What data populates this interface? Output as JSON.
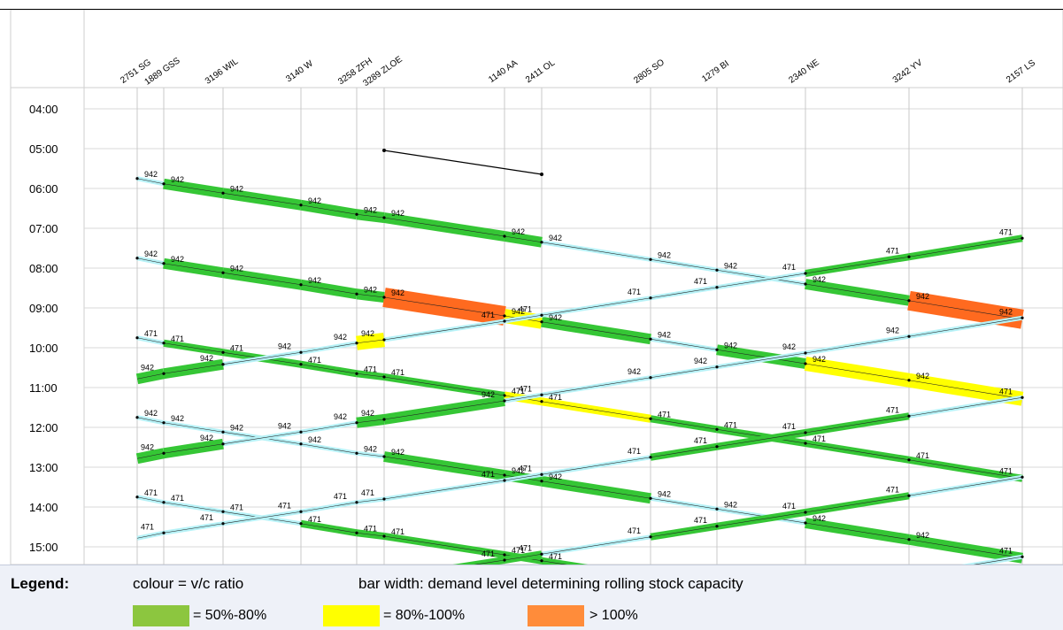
{
  "stations": [
    {
      "label": "2751 SG"
    },
    {
      "label": "1889 GSS"
    },
    {
      "label": "3196 WIL"
    },
    {
      "label": "3140 W"
    },
    {
      "label": "3258 ZFH"
    },
    {
      "label": "3289 ZLOE"
    },
    {
      "label": "1140 AA"
    },
    {
      "label": "2411 OL"
    },
    {
      "label": "2805 SO"
    },
    {
      "label": "1279 BI"
    },
    {
      "label": "2340 NE"
    },
    {
      "label": "3242 YV"
    },
    {
      "label": "2157 LS"
    }
  ],
  "time_labels": [
    "04:00",
    "05:00",
    "06:00",
    "07:00",
    "08:00",
    "09:00",
    "10:00",
    "11:00",
    "12:00",
    "13:00",
    "14:00",
    "15:00"
  ],
  "colors": {
    "below_50": "#b7f2f7",
    "50_80": "#35c635",
    "80_100": "#ffff00",
    "over_100": "#ff6a1f",
    "thin_line": "#222222",
    "station_line": "#c8c8c8",
    "grid_line": "#d9d9d9"
  },
  "chart_data": {
    "type": "diagram",
    "x_axis": "station sequence",
    "y_axis": "time of day",
    "trains_eastbound": [
      {
        "start": "05:45",
        "capacity": [
          942,
          942,
          942,
          942,
          942,
          942,
          942,
          942,
          942,
          942,
          942,
          942
        ],
        "ratio": [
          "low",
          "high",
          "high",
          "high",
          "high",
          "high",
          "high",
          "low",
          "low",
          "low",
          "high",
          "over"
        ]
      },
      {
        "start": "07:45",
        "capacity": [
          942,
          942,
          942,
          942,
          942,
          942,
          942,
          942,
          942,
          942,
          942,
          942
        ],
        "ratio": [
          "low",
          "high",
          "high",
          "high",
          "high",
          "over",
          "mid",
          "high",
          "low",
          "high",
          "mid",
          "mid"
        ]
      },
      {
        "start": "09:45",
        "capacity": [
          471,
          471,
          471,
          471,
          471,
          471,
          471,
          471,
          471,
          471,
          471,
          471
        ],
        "ratio": [
          "low",
          "high",
          "high",
          "high",
          "high",
          "high",
          "mid",
          "mid",
          "high",
          "high",
          "high",
          "high"
        ]
      },
      {
        "start": "11:45",
        "capacity": [
          942,
          942,
          942,
          942,
          942,
          942,
          942,
          942,
          942,
          942,
          942,
          942
        ],
        "ratio": [
          "low",
          "low",
          "low",
          "low",
          "low",
          "high",
          "high",
          "high",
          "low",
          "low",
          "high",
          "high"
        ]
      },
      {
        "start": "13:45",
        "capacity": [
          471,
          471,
          471,
          471,
          471,
          471,
          471,
          471,
          471,
          471,
          471,
          471
        ],
        "ratio": [
          "low",
          "low",
          "low",
          "high",
          "high",
          "high",
          "high",
          "high",
          "low",
          "low",
          "low",
          "low"
        ]
      }
    ],
    "trains_westbound": [
      {
        "start": "07:15",
        "capacity": [
          471,
          471,
          471,
          471,
          471,
          471,
          471,
          942,
          942,
          942,
          942,
          942
        ],
        "ratio": [
          "high",
          "high",
          "low",
          "low",
          "low",
          "low",
          "low",
          "mid",
          "low",
          "low",
          "high",
          "high"
        ]
      },
      {
        "start": "09:15",
        "capacity": [
          942,
          942,
          942,
          942,
          942,
          471,
          942,
          942,
          942,
          942,
          942,
          942
        ],
        "ratio": [
          "low",
          "low",
          "low",
          "low",
          "low",
          "low",
          "high",
          "high",
          "low",
          "low",
          "high",
          "high"
        ]
      },
      {
        "start": "11:15",
        "capacity": [
          471,
          471,
          471,
          471,
          471,
          471,
          471,
          471,
          471,
          471,
          471,
          471
        ],
        "ratio": [
          "low",
          "high",
          "high",
          "high",
          "low",
          "low",
          "low",
          "low",
          "low",
          "low",
          "low",
          "low"
        ]
      },
      {
        "start": "13:15",
        "capacity": [
          471,
          471,
          471,
          471,
          471,
          471,
          471,
          471,
          471,
          471,
          471,
          471
        ],
        "ratio": [
          "low",
          "high",
          "high",
          "high",
          "low",
          "high",
          "high",
          "high",
          "low",
          "low",
          "low",
          "low"
        ]
      },
      {
        "start": "15:15",
        "capacity": [
          471,
          471,
          471,
          471,
          471,
          471,
          471,
          471,
          471,
          471,
          471,
          471
        ],
        "ratio": [
          "low",
          "high",
          "high",
          "high",
          "high",
          "high",
          "high",
          "high",
          "high",
          "high",
          "high",
          "high"
        ]
      }
    ]
  },
  "legend": {
    "title": "Legend:",
    "colour_text": "colour = v/c ratio",
    "width_text": "bar width: demand level determining rolling stock capacity",
    "items": [
      {
        "label": "= 50%-80%",
        "color": "#8cc63f"
      },
      {
        "label": "= 80%-100%",
        "color": "#ffff00"
      },
      {
        "label": "> 100%",
        "color": "#ff8c3a"
      }
    ]
  }
}
